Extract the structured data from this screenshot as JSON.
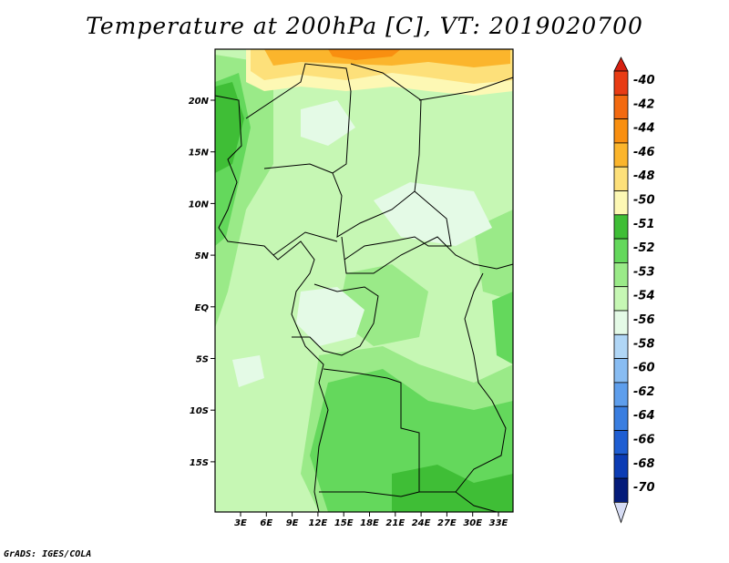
{
  "title": "Temperature at 200hPa [C], VT: 2019020700",
  "credit": "GrADS: IGES/COLA",
  "map": {
    "lat_labels": [
      "20N",
      "15N",
      "10N",
      "5N",
      "EQ",
      "5S",
      "10S",
      "15S"
    ],
    "lon_labels": [
      "3E",
      "6E",
      "9E",
      "12E",
      "15E",
      "18E",
      "21E",
      "24E",
      "27E",
      "30E",
      "33E"
    ]
  },
  "colorbar": {
    "levels": [
      "-40",
      "-42",
      "-44",
      "-46",
      "-48",
      "-50",
      "-51",
      "-52",
      "-53",
      "-54",
      "-56",
      "-58",
      "-60",
      "-62",
      "-64",
      "-66",
      "-68",
      "-70"
    ],
    "colors": {
      "top_arrow": "#d62010",
      "bins": [
        "#e83c14",
        "#f36a10",
        "#f98f10",
        "#fbb52c",
        "#fde07a",
        "#fdf8b4",
        "#3fbe36",
        "#64d85c",
        "#9aea88",
        "#c6f7b4",
        "#e4fae6",
        "#b0d6f6",
        "#88bcf2",
        "#5e9eec",
        "#3a7ee0",
        "#1f5ed2",
        "#0c3cb4",
        "#051c7a"
      ],
      "bottom_arrow": "#d6dcf4"
    }
  }
}
